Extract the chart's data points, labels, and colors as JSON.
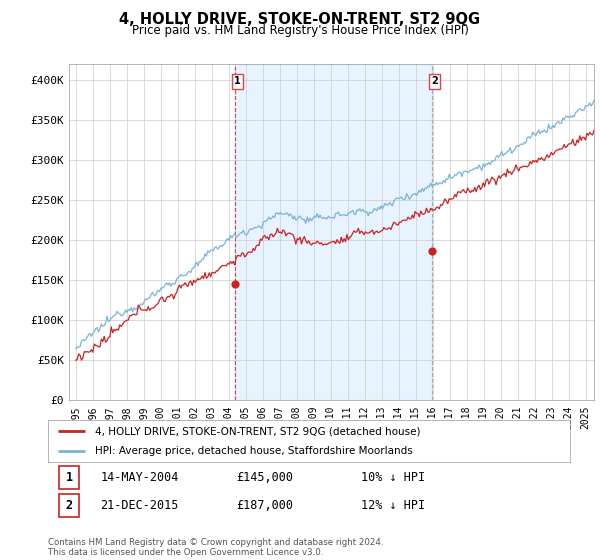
{
  "title": "4, HOLLY DRIVE, STOKE-ON-TRENT, ST2 9QG",
  "subtitle": "Price paid vs. HM Land Registry's House Price Index (HPI)",
  "legend_line1": "4, HOLLY DRIVE, STOKE-ON-TRENT, ST2 9QG (detached house)",
  "legend_line2": "HPI: Average price, detached house, Staffordshire Moorlands",
  "annotation1_date": "14-MAY-2004",
  "annotation1_price": "£145,000",
  "annotation1_hpi": "10% ↓ HPI",
  "annotation2_date": "21-DEC-2015",
  "annotation2_price": "£187,000",
  "annotation2_hpi": "12% ↓ HPI",
  "footer": "Contains HM Land Registry data © Crown copyright and database right 2024.\nThis data is licensed under the Open Government Licence v3.0.",
  "hpi_color": "#7ab4d8",
  "price_color": "#cc2222",
  "vline1_color": "#dd4444",
  "vline2_color": "#aaaaaa",
  "shade_color": "#ddeeff",
  "background_color": "#ffffff",
  "grid_color": "#cccccc",
  "ylim": [
    0,
    420000
  ],
  "yticks": [
    0,
    50000,
    100000,
    150000,
    200000,
    250000,
    300000,
    350000,
    400000
  ],
  "ytick_labels": [
    "£0",
    "£50K",
    "£100K",
    "£150K",
    "£200K",
    "£250K",
    "£300K",
    "£350K",
    "£400K"
  ],
  "sale1_year": 2004.37,
  "sale1_price": 145000,
  "sale2_year": 2015.97,
  "sale2_price": 187000,
  "xlim_left": 1994.6,
  "xlim_right": 2025.5
}
